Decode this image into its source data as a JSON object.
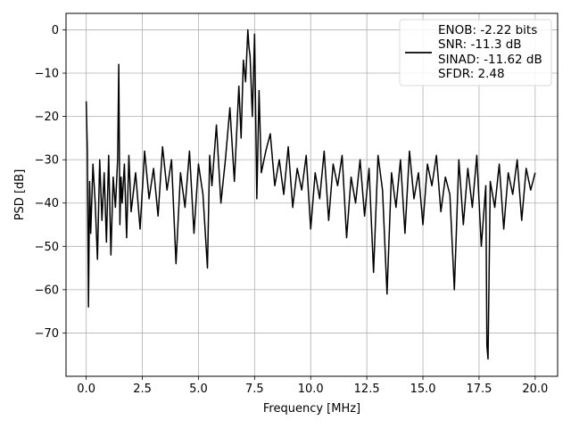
{
  "chart_data": {
    "type": "line",
    "title": "",
    "xlabel": "Frequency [MHz]",
    "ylabel": "PSD [dB]",
    "xlim": [
      -0.9,
      21.0
    ],
    "ylim": [
      -80,
      3.8
    ],
    "x_ticks": [
      0.0,
      2.5,
      5.0,
      7.5,
      10.0,
      12.5,
      15.0,
      17.5,
      20.0
    ],
    "x_tick_labels": [
      "0.0",
      "2.5",
      "5.0",
      "7.5",
      "10.0",
      "12.5",
      "15.0",
      "17.5",
      "20.0"
    ],
    "y_ticks": [
      0,
      -10,
      -20,
      -30,
      -40,
      -50,
      -60,
      -70
    ],
    "y_tick_labels": [
      "0",
      "−10",
      "−20",
      "−30",
      "−40",
      "−50",
      "−60",
      "−70"
    ],
    "grid": true,
    "legend_position": "top-right",
    "series": [
      {
        "name": "",
        "color": "#000000",
        "x": [
          0.0,
          0.05,
          0.1,
          0.15,
          0.2,
          0.3,
          0.4,
          0.5,
          0.6,
          0.7,
          0.8,
          0.9,
          1.0,
          1.1,
          1.2,
          1.3,
          1.4,
          1.45,
          1.5,
          1.55,
          1.6,
          1.7,
          1.8,
          1.9,
          2.0,
          2.2,
          2.4,
          2.6,
          2.8,
          3.0,
          3.2,
          3.4,
          3.6,
          3.8,
          4.0,
          4.2,
          4.4,
          4.6,
          4.8,
          5.0,
          5.2,
          5.4,
          5.5,
          5.6,
          5.8,
          6.0,
          6.2,
          6.4,
          6.6,
          6.8,
          6.9,
          7.0,
          7.1,
          7.2,
          7.25,
          7.3,
          7.4,
          7.5,
          7.6,
          7.7,
          7.8,
          8.0,
          8.2,
          8.4,
          8.6,
          8.8,
          9.0,
          9.2,
          9.4,
          9.6,
          9.8,
          10.0,
          10.2,
          10.4,
          10.6,
          10.8,
          11.0,
          11.2,
          11.4,
          11.6,
          11.8,
          12.0,
          12.2,
          12.4,
          12.6,
          12.8,
          13.0,
          13.2,
          13.4,
          13.6,
          13.8,
          14.0,
          14.2,
          14.4,
          14.6,
          14.8,
          15.0,
          15.2,
          15.4,
          15.6,
          15.8,
          16.0,
          16.2,
          16.4,
          16.6,
          16.8,
          17.0,
          17.2,
          17.4,
          17.6,
          17.8,
          17.85,
          17.9,
          18.0,
          18.2,
          18.4,
          18.6,
          18.8,
          19.0,
          19.2,
          19.4,
          19.6,
          19.8,
          20.0
        ],
        "y": [
          -16.5,
          -28,
          -64,
          -35,
          -47,
          -31,
          -40,
          -53,
          -30,
          -44,
          -33,
          -49,
          -29,
          -52,
          -34,
          -41,
          -30,
          -8,
          -45,
          -34,
          -40,
          -31,
          -48,
          -29,
          -42,
          -33,
          -46,
          -28,
          -39,
          -32,
          -43,
          -27,
          -37,
          -30,
          -54,
          -33,
          -41,
          -28,
          -47,
          -31,
          -38,
          -55,
          -29,
          -36,
          -22,
          -40,
          -30,
          -18,
          -35,
          -13,
          -25,
          -7,
          -12,
          0,
          -4,
          -6,
          -20,
          -1,
          -39,
          -14,
          -33,
          -28,
          -24,
          -36,
          -30,
          -38,
          -27,
          -41,
          -32,
          -37,
          -29,
          -46,
          -33,
          -39,
          -28,
          -44,
          -31,
          -36,
          -29,
          -48,
          -34,
          -40,
          -30,
          -43,
          -32,
          -56,
          -29,
          -37,
          -61,
          -33,
          -41,
          -30,
          -47,
          -28,
          -39,
          -33,
          -45,
          -31,
          -36,
          -29,
          -42,
          -34,
          -38,
          -60,
          -30,
          -45,
          -32,
          -41,
          -29,
          -50,
          -36,
          -73,
          -76,
          -35,
          -41,
          -31,
          -46,
          -33,
          -38,
          -30,
          -44,
          -32,
          -37,
          -33
        ]
      }
    ]
  },
  "legend": {
    "lines": [
      "ENOB: -2.22 bits",
      "SNR: -11.3 dB",
      "SINAD: -11.62 dB",
      "SFDR: 2.48"
    ]
  }
}
